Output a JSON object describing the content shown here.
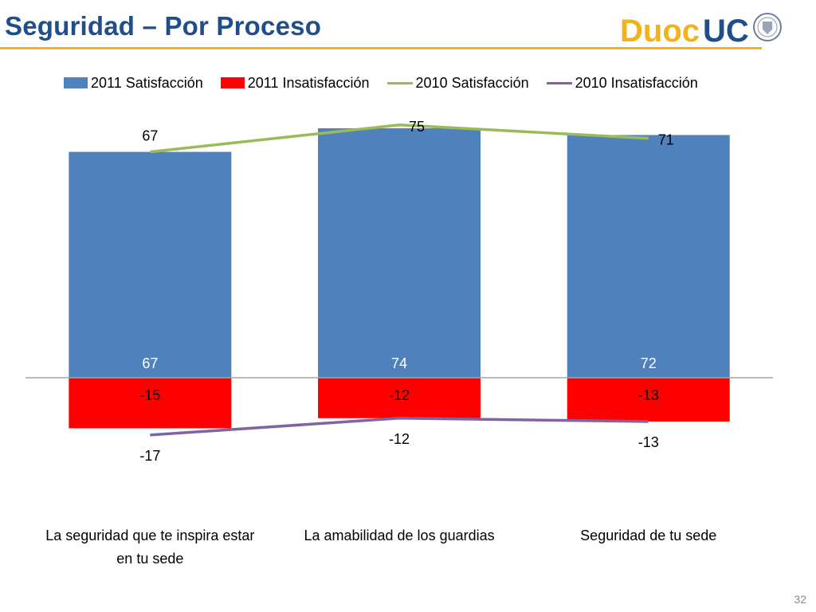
{
  "page": {
    "title": "Seguridad – Por Proceso",
    "page_number": "32"
  },
  "logo": {
    "text_duoc": "Duoc",
    "text_uc": "UC",
    "colors": {
      "duoc": "#f2b21b",
      "uc": "#1f4e8c"
    }
  },
  "chart_data": {
    "type": "bar",
    "categories": [
      "La seguridad que te inspira estar en tu sede",
      "La amabilidad de los guardias",
      "Seguridad de tu sede"
    ],
    "category_lines": [
      [
        "La seguridad que te inspira estar",
        "en tu sede"
      ],
      [
        "La amabilidad de los guardias"
      ],
      [
        "Seguridad de tu sede"
      ]
    ],
    "series": [
      {
        "name": "2011 Satisfacción",
        "kind": "bar",
        "color": "#4f81bd",
        "values": [
          67,
          74,
          72
        ]
      },
      {
        "name": "2011 Insatisfacción",
        "kind": "bar",
        "color": "#ff0000",
        "values": [
          -15,
          -12,
          -13
        ]
      },
      {
        "name": "2010 Satisfacción",
        "kind": "line",
        "color": "#9bbb59",
        "values": [
          67,
          75,
          71
        ]
      },
      {
        "name": "2010 Insatisfacción",
        "kind": "line",
        "color": "#8064a2",
        "values": [
          -17,
          -12,
          -13
        ]
      }
    ],
    "ylim": [
      -30,
      80
    ],
    "legend_position": "top",
    "grid": false,
    "title": "",
    "xlabel": "",
    "ylabel": ""
  }
}
